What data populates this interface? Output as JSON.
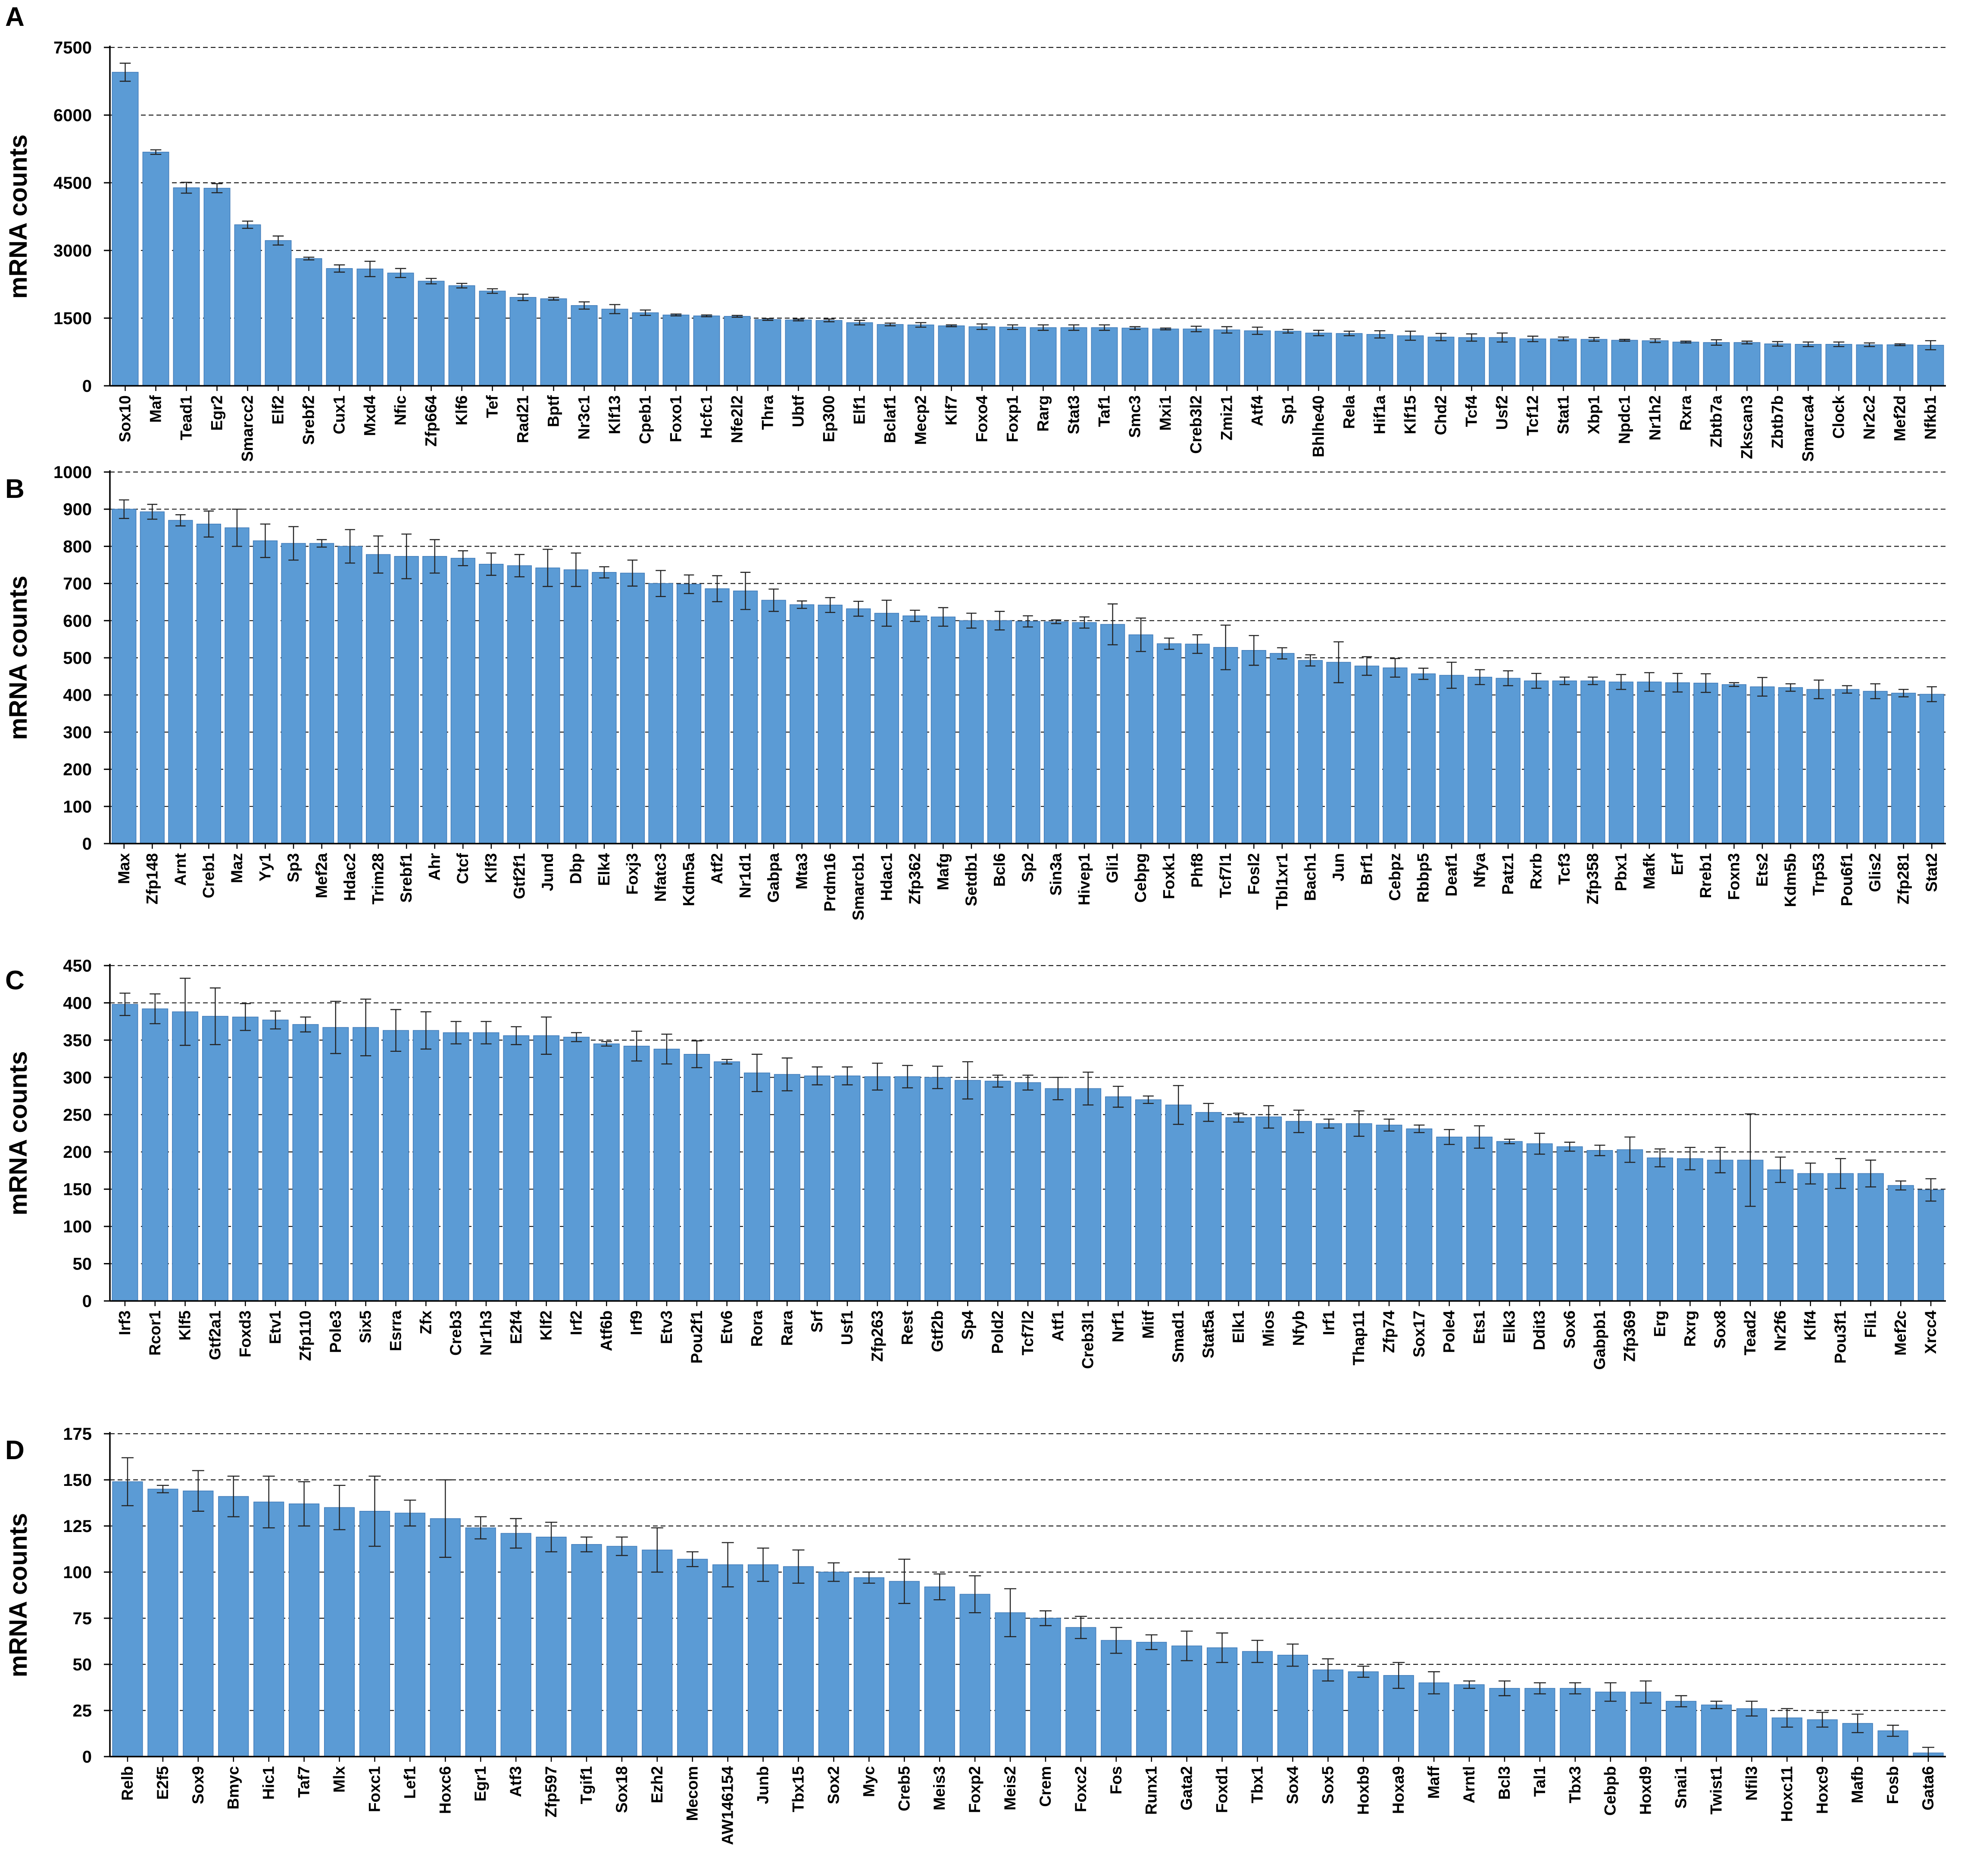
{
  "chart_data": [
    {
      "type": "bar",
      "panel": "A",
      "ylabel": "mRNA counts",
      "ylim": [
        0,
        7500
      ],
      "yticks": [
        0,
        1500,
        3000,
        4500,
        6000,
        7500
      ],
      "grid": "dashed horizontal",
      "color": "#5b9bd5",
      "categories": [
        "Sox10",
        "Maf",
        "Tead1",
        "Egr2",
        "Smarcc2",
        "Elf2",
        "Srebf2",
        "Cux1",
        "Mxd4",
        "Nfic",
        "Zfp664",
        "Klf6",
        "Tef",
        "Rad21",
        "Bptf",
        "Nr3c1",
        "Klf13",
        "Cpeb1",
        "Foxo1",
        "Hcfc1",
        "Nfe2l2",
        "Thra",
        "Ubtf",
        "Ep300",
        "Elf1",
        "Bclaf1",
        "Mecp2",
        "Klf7",
        "Foxo4",
        "Foxp1",
        "Rarg",
        "Stat3",
        "Taf1",
        "Smc3",
        "Mxi1",
        "Creb3l2",
        "Zmiz1",
        "Atf4",
        "Sp1",
        "Bhlhe40",
        "Rela",
        "Hif1a",
        "Klf15",
        "Chd2",
        "Tcf4",
        "Usf2",
        "Tcf12",
        "Stat1",
        "Xbp1",
        "Npdc1",
        "Nr1h2",
        "Rxra",
        "Zbtb7a",
        "Zkscan3",
        "Zbtb7b",
        "Smarca4",
        "Clock",
        "Nr2c2",
        "Mef2d",
        "Nfkb1"
      ],
      "values": [
        6950,
        5180,
        4390,
        4380,
        3570,
        3220,
        2820,
        2600,
        2590,
        2500,
        2320,
        2220,
        2100,
        1960,
        1930,
        1780,
        1700,
        1620,
        1570,
        1550,
        1540,
        1470,
        1460,
        1450,
        1400,
        1360,
        1350,
        1330,
        1310,
        1300,
        1290,
        1290,
        1290,
        1280,
        1260,
        1260,
        1240,
        1220,
        1210,
        1170,
        1160,
        1140,
        1110,
        1080,
        1070,
        1070,
        1040,
        1040,
        1030,
        1010,
        1000,
        970,
        960,
        960,
        930,
        920,
        920,
        910,
        910,
        900
      ],
      "errors": [
        200,
        50,
        120,
        100,
        80,
        100,
        30,
        80,
        170,
        100,
        60,
        50,
        50,
        70,
        30,
        80,
        100,
        60,
        20,
        20,
        20,
        20,
        20,
        30,
        50,
        30,
        50,
        20,
        60,
        50,
        60,
        60,
        60,
        30,
        20,
        60,
        70,
        80,
        40,
        60,
        50,
        80,
        100,
        80,
        80,
        100,
        60,
        40,
        40,
        20,
        40,
        20,
        60,
        30,
        50,
        50,
        50,
        40,
        20,
        100
      ]
    },
    {
      "type": "bar",
      "panel": "B",
      "ylabel": "mRNA counts",
      "ylim": [
        0,
        1000
      ],
      "yticks": [
        0,
        100,
        200,
        300,
        400,
        500,
        600,
        700,
        800,
        900,
        1000
      ],
      "grid": "dashed horizontal",
      "color": "#5b9bd5",
      "categories": [
        "Max",
        "Zfp148",
        "Arnt",
        "Creb1",
        "Maz",
        "Yy1",
        "Sp3",
        "Mef2a",
        "Hdac2",
        "Trim28",
        "Srebf1",
        "Ahr",
        "Ctcf",
        "Klf3",
        "Gtf2f1",
        "Jund",
        "Dbp",
        "Elk4",
        "Foxj3",
        "Nfatc3",
        "Kdm5a",
        "Atf2",
        "Nr1d1",
        "Gabpa",
        "Mta3",
        "Prdm16",
        "Smarcb1",
        "Hdac1",
        "Zfp362",
        "Mafg",
        "Setdb1",
        "Bcl6",
        "Sp2",
        "Sin3a",
        "Hivep1",
        "Gli1",
        "Cebpg",
        "Foxk1",
        "Phf8",
        "Tcf7l1",
        "Fosl2",
        "Tbl1xr1",
        "Bach1",
        "Jun",
        "Brf1",
        "Cebpz",
        "Rbbp5",
        "Deaf1",
        "Nfya",
        "Patz1",
        "Rxrb",
        "Tcf3",
        "Zfp358",
        "Pbx1",
        "Mafk",
        "Erf",
        "Rreb1",
        "Foxn3",
        "Ets2",
        "Kdm5b",
        "Trp53",
        "Pou6f1",
        "Glis2",
        "Zfp281",
        "Stat2"
      ],
      "values": [
        900,
        893,
        870,
        860,
        850,
        815,
        808,
        808,
        800,
        778,
        773,
        773,
        768,
        752,
        748,
        742,
        737,
        730,
        728,
        700,
        698,
        686,
        680,
        655,
        643,
        642,
        632,
        620,
        613,
        610,
        600,
        600,
        598,
        597,
        595,
        590,
        562,
        538,
        537,
        528,
        520,
        512,
        493,
        488,
        478,
        473,
        457,
        453,
        448,
        445,
        438,
        438,
        438,
        435,
        435,
        433,
        432,
        428,
        422,
        420,
        415,
        415,
        410,
        405,
        402
      ],
      "errors": [
        25,
        20,
        15,
        35,
        50,
        45,
        45,
        10,
        45,
        50,
        60,
        45,
        20,
        30,
        30,
        50,
        45,
        15,
        35,
        35,
        25,
        35,
        50,
        30,
        10,
        20,
        20,
        35,
        15,
        25,
        20,
        25,
        15,
        5,
        15,
        55,
        45,
        15,
        25,
        60,
        40,
        15,
        15,
        55,
        25,
        25,
        15,
        35,
        20,
        20,
        20,
        10,
        10,
        20,
        25,
        25,
        25,
        5,
        25,
        10,
        25,
        10,
        20,
        10,
        20
      ]
    },
    {
      "type": "bar",
      "panel": "C",
      "ylabel": "mRNA counts",
      "ylim": [
        0,
        450
      ],
      "yticks": [
        0,
        50,
        100,
        150,
        200,
        250,
        300,
        350,
        400,
        450
      ],
      "grid": "dashed horizontal",
      "color": "#5b9bd5",
      "categories": [
        "Irf3",
        "Rcor1",
        "Klf5",
        "Gtf2a1",
        "Foxd3",
        "Etv1",
        "Zfp110",
        "Pole3",
        "Six5",
        "Esrra",
        "Zfx",
        "Creb3",
        "Nr1h3",
        "E2f4",
        "Klf2",
        "Irf2",
        "Atf6b",
        "Irf9",
        "Etv3",
        "Pou2f1",
        "Etv6",
        "Rora",
        "Rara",
        "Srf",
        "Usf1",
        "Zfp263",
        "Rest",
        "Gtf2b",
        "Sp4",
        "Pold2",
        "Tcf7l2",
        "Atf1",
        "Creb3l1",
        "Nrf1",
        "Mitf",
        "Smad1",
        "Stat5a",
        "Elk1",
        "Mios",
        "Nfyb",
        "Irf1",
        "Thap11",
        "Zfp74",
        "Sox17",
        "Pole4",
        "Ets1",
        "Elk3",
        "Ddit3",
        "Sox6",
        "Gabpb1",
        "Zfp369",
        "Erg",
        "Rxrg",
        "Sox8",
        "Tead2",
        "Nr2f6",
        "Klf4",
        "Pou3f1",
        "Fli1",
        "Mef2c",
        "Xrcc4"
      ],
      "values": [
        398,
        392,
        388,
        382,
        381,
        377,
        371,
        367,
        367,
        363,
        363,
        360,
        360,
        356,
        356,
        354,
        345,
        342,
        338,
        331,
        321,
        306,
        304,
        302,
        302,
        301,
        301,
        300,
        296,
        295,
        293,
        285,
        285,
        274,
        270,
        263,
        253,
        246,
        247,
        241,
        238,
        238,
        236,
        231,
        220,
        220,
        214,
        211,
        207,
        202,
        203,
        192,
        191,
        189,
        189,
        176,
        171,
        171,
        171,
        155,
        149
      ],
      "errors": [
        15,
        20,
        45,
        38,
        18,
        12,
        10,
        35,
        38,
        28,
        25,
        15,
        15,
        12,
        25,
        6,
        3,
        20,
        20,
        18,
        3,
        25,
        22,
        12,
        12,
        18,
        15,
        15,
        25,
        8,
        10,
        15,
        22,
        14,
        5,
        26,
        12,
        6,
        15,
        15,
        6,
        17,
        8,
        5,
        10,
        15,
        3,
        14,
        6,
        7,
        17,
        12,
        15,
        17,
        62,
        17,
        14,
        20,
        18,
        6,
        15
      ]
    },
    {
      "type": "bar",
      "panel": "D",
      "ylabel": "mRNA counts",
      "ylim": [
        0,
        175
      ],
      "yticks": [
        0,
        25,
        50,
        75,
        100,
        125,
        150,
        175
      ],
      "grid": "dashed horizontal",
      "color": "#5b9bd5",
      "categories": [
        "Relb",
        "E2f5",
        "Sox9",
        "Bmyc",
        "Hic1",
        "Taf7",
        "Mlx",
        "Foxc1",
        "Lef1",
        "Hoxc6",
        "Egr1",
        "Atf3",
        "Zfp597",
        "Tgif1",
        "Sox18",
        "Ezh2",
        "Mecom",
        "AW146154",
        "Junb",
        "Tbx15",
        "Sox2",
        "Myc",
        "Creb5",
        "Meis3",
        "Foxp2",
        "Meis2",
        "Crem",
        "Foxc2",
        "Fos",
        "Runx1",
        "Gata2",
        "Foxd1",
        "Tbx1",
        "Sox4",
        "Sox5",
        "Hoxb9",
        "Hoxa9",
        "Maff",
        "Arntl",
        "Bcl3",
        "Tal1",
        "Tbx3",
        "Cebpb",
        "Hoxd9",
        "Snai1",
        "Twist1",
        "Nfil3",
        "Hoxc11",
        "Hoxc9",
        "Mafb",
        "Fosb",
        "Gata6"
      ],
      "values": [
        149,
        145,
        144,
        141,
        138,
        137,
        135,
        133,
        132,
        129,
        124,
        121,
        119,
        115,
        114,
        112,
        107,
        104,
        104,
        103,
        100,
        97,
        95,
        92,
        88,
        78,
        75,
        70,
        63,
        62,
        60,
        59,
        57,
        55,
        47,
        46,
        44,
        40,
        39,
        37,
        37,
        37,
        35,
        35,
        30,
        28,
        26,
        21,
        20,
        18,
        14,
        2
      ],
      "errors": [
        13,
        2,
        11,
        11,
        14,
        12,
        12,
        19,
        7,
        21,
        6,
        8,
        8,
        4,
        5,
        12,
        4,
        12,
        9,
        9,
        5,
        3,
        12,
        7,
        10,
        13,
        4,
        6,
        7,
        4,
        8,
        8,
        6,
        6,
        6,
        3,
        7,
        6,
        2,
        4,
        3,
        3,
        5,
        6,
        3,
        2,
        4,
        5,
        4,
        5,
        3,
        3
      ]
    }
  ]
}
